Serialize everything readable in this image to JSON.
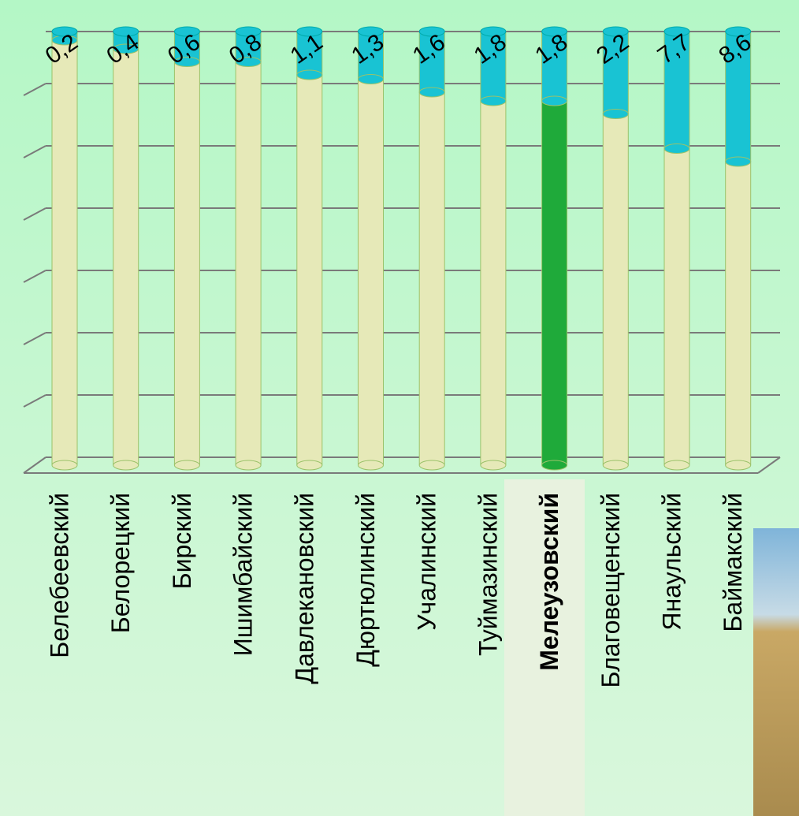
{
  "chart_data": {
    "type": "stacked-cylinder",
    "categories": [
      "Белебеевский",
      "Белорецкий",
      "Бирский",
      "Ишимбайский",
      "Давлекановский",
      "Дюртюлинский",
      "Учалинский",
      "Туймазинский",
      "Мелеузовский",
      "Благовещенский",
      "Янаульский",
      "Баймакский"
    ],
    "series": [
      {
        "color": "#e6e9b8",
        "colors": [
          "#e6e9b8",
          "#e6e9b8",
          "#e6e9b8",
          "#e6e9b8",
          "#e6e9b8",
          "#e6e9b8",
          "#e6e9b8",
          "#e6e9b8",
          "#1faa3a",
          "#e6e9b8",
          "#e6e9b8",
          "#e6e9b8"
        ],
        "values": [
          98,
          96,
          93,
          93,
          90,
          89,
          86,
          84,
          84,
          81,
          73,
          70
        ]
      },
      {
        "color": "#19c3d3",
        "values": [
          2,
          4,
          7,
          7,
          10,
          11,
          14,
          16,
          16,
          19,
          27,
          30
        ]
      }
    ],
    "annotations": [
      "0,2",
      "0,4",
      "0,6",
      "0,8",
      "1,1",
      "1,3",
      "1,6",
      "1,8",
      "1,8",
      "2,2",
      "7,7",
      "8,6"
    ],
    "ylim": [
      0,
      100
    ]
  }
}
